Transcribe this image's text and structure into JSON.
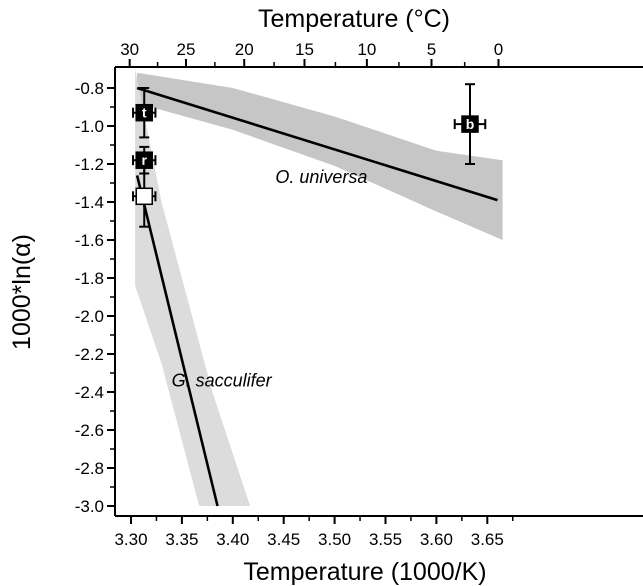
{
  "chart_data": {
    "type": "scatter",
    "title": "",
    "xlabel": "Temperature (1000/K)",
    "ylabel": "1000*ln(α)",
    "x2label": "Temperature (°C)",
    "xlim": [
      3.28,
      3.665
    ],
    "ylim": [
      -3.0,
      -0.7
    ],
    "xticks": [
      3.3,
      3.35,
      3.4,
      3.45,
      3.5,
      3.55,
      3.6,
      3.65
    ],
    "xtick_labels": [
      "3.30",
      "3.35",
      "3.40",
      "3.45",
      "3.50",
      "3.55",
      "3.60",
      "3.65"
    ],
    "yticks": [
      -0.8,
      -1.0,
      -1.2,
      -1.4,
      -1.6,
      -1.8,
      -2.0,
      -2.2,
      -2.4,
      -2.6,
      -2.8,
      -3.0
    ],
    "ytick_labels": [
      "-0.8",
      "-1.0",
      "-1.2",
      "-1.4",
      "-1.6",
      "-1.8",
      "-2.0",
      "-2.2",
      "-2.4",
      "-2.6",
      "-2.8",
      "-3.0"
    ],
    "x2ticks": [
      30,
      25,
      20,
      15,
      10,
      5,
      0
    ],
    "x2tick_labels": [
      "30",
      "25",
      "20",
      "15",
      "10",
      "5",
      "0"
    ],
    "grid": false,
    "points": [
      {
        "label": "t",
        "x": 3.313,
        "y": -0.93,
        "xerr": 0.011,
        "yerr": 0.13,
        "fill": "#000000"
      },
      {
        "label": "b",
        "x": 3.633,
        "y": -0.99,
        "xerr": 0.015,
        "yerr": 0.21,
        "fill": "#000000"
      },
      {
        "label": "r",
        "x": 3.313,
        "y": -1.18,
        "xerr": 0.011,
        "yerr": 0.07,
        "fill": "#000000"
      },
      {
        "label": "G",
        "x": 3.313,
        "y": -1.37,
        "xerr": 0.011,
        "yerr": 0.16,
        "fill": "#ffffff"
      }
    ],
    "series": [
      {
        "name": "O. universa",
        "line": [
          [
            3.306,
            -0.8
          ],
          [
            3.66,
            -1.39
          ]
        ],
        "band_upper": [
          [
            3.306,
            -0.72
          ],
          [
            3.4,
            -0.8
          ],
          [
            3.5,
            -0.95
          ],
          [
            3.6,
            -1.13
          ],
          [
            3.665,
            -1.18
          ]
        ],
        "band_lower": [
          [
            3.306,
            -0.88
          ],
          [
            3.4,
            -1.02
          ],
          [
            3.5,
            -1.21
          ],
          [
            3.6,
            -1.45
          ],
          [
            3.665,
            -1.6
          ]
        ],
        "band_color": "#c6c6c6"
      },
      {
        "name": "G. sacculifer",
        "line": [
          [
            3.306,
            -1.26
          ],
          [
            3.385,
            -3.0
          ]
        ],
        "band_upper": [
          [
            3.304,
            -0.7
          ],
          [
            3.33,
            -1.4
          ],
          [
            3.38,
            -2.4
          ],
          [
            3.417,
            -3.0
          ]
        ],
        "band_lower": [
          [
            3.304,
            -1.84
          ],
          [
            3.33,
            -2.25
          ],
          [
            3.367,
            -3.0
          ]
        ],
        "band_color": "#dcdcdc"
      }
    ],
    "annotations": [
      {
        "text": "O. universa",
        "x": 3.487,
        "y": -1.3
      },
      {
        "text": "G. sacculifer",
        "x": 3.389,
        "y": -2.37
      }
    ]
  }
}
